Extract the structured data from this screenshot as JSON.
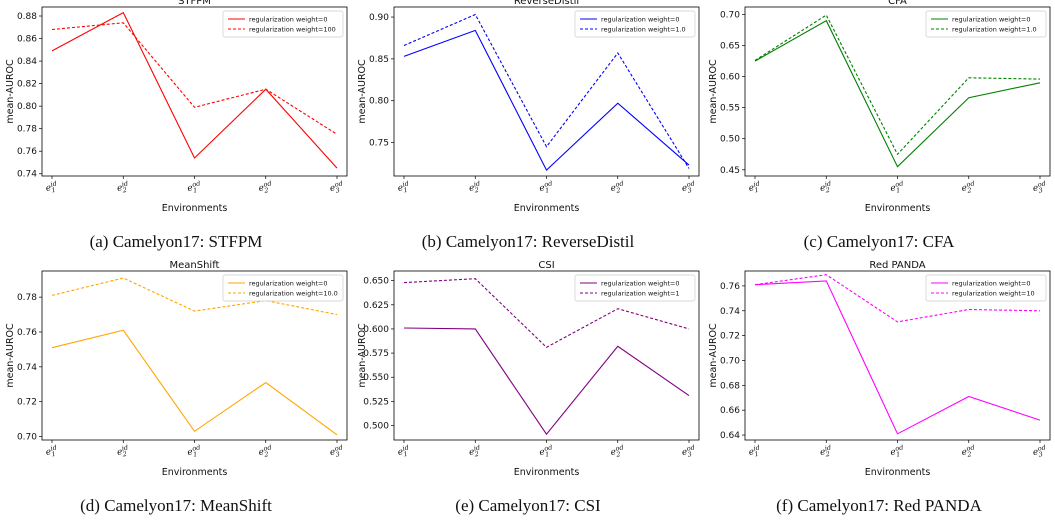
{
  "chart_data": [
    {
      "type": "line",
      "title": "STFPM",
      "caption": "(a) Camelyon17: STFPM",
      "xlabel": "Environments",
      "ylabel": "mean-AUROC",
      "categories": [
        [
          "e",
          "1",
          "id"
        ],
        [
          "e",
          "2",
          "id"
        ],
        [
          "e",
          "1",
          "od"
        ],
        [
          "e",
          "2",
          "od"
        ],
        [
          "e",
          "3",
          "od"
        ]
      ],
      "ylim": [
        0.738,
        0.888
      ],
      "yticks": [
        "0.74",
        "0.76",
        "0.78",
        "0.80",
        "0.82",
        "0.84",
        "0.86",
        "0.88"
      ],
      "yticks_v": [
        0.74,
        0.76,
        0.78,
        0.8,
        0.82,
        0.84,
        0.86,
        0.88
      ],
      "color": "#ff0000",
      "legend_pos": "top-right",
      "series": [
        {
          "name": "regularization weight=0",
          "style": "solid",
          "values": [
            0.849,
            0.883,
            0.754,
            0.815,
            0.745
          ]
        },
        {
          "name": "regularization weight=100",
          "style": "dashed",
          "values": [
            0.868,
            0.874,
            0.799,
            0.815,
            0.775
          ]
        }
      ]
    },
    {
      "type": "line",
      "title": "ReverseDistil",
      "caption": "(b) Camelyon17: ReverseDistil",
      "xlabel": "Environments",
      "ylabel": "mean-AUROC",
      "categories": [
        [
          "e",
          "1",
          "id"
        ],
        [
          "e",
          "2",
          "id"
        ],
        [
          "e",
          "1",
          "od"
        ],
        [
          "e",
          "2",
          "od"
        ],
        [
          "e",
          "3",
          "od"
        ]
      ],
      "ylim": [
        0.71,
        0.912
      ],
      "yticks": [
        "0.75",
        "0.80",
        "0.85",
        "0.90"
      ],
      "yticks_v": [
        0.75,
        0.8,
        0.85,
        0.9
      ],
      "color": "#0000ff",
      "legend_pos": "top-right",
      "series": [
        {
          "name": "regularization weight=0",
          "style": "solid",
          "values": [
            0.853,
            0.884,
            0.717,
            0.797,
            0.723
          ]
        },
        {
          "name": "regularization weight=1.0",
          "style": "dashed",
          "values": [
            0.866,
            0.903,
            0.745,
            0.857,
            0.719
          ]
        }
      ]
    },
    {
      "type": "line",
      "title": "CFA",
      "caption": "(c) Camelyon17: CFA",
      "xlabel": "Environments",
      "ylabel": "mean-AUROC",
      "categories": [
        [
          "e",
          "1",
          "id"
        ],
        [
          "e",
          "2",
          "id"
        ],
        [
          "e",
          "1",
          "od"
        ],
        [
          "e",
          "2",
          "od"
        ],
        [
          "e",
          "3",
          "od"
        ]
      ],
      "ylim": [
        0.44,
        0.712
      ],
      "yticks": [
        "0.45",
        "0.50",
        "0.55",
        "0.60",
        "0.65",
        "0.70"
      ],
      "yticks_v": [
        0.45,
        0.5,
        0.55,
        0.6,
        0.65,
        0.7
      ],
      "color": "#008000",
      "legend_pos": "top-right",
      "series": [
        {
          "name": "regularization weight=0",
          "style": "solid",
          "values": [
            0.625,
            0.69,
            0.455,
            0.566,
            0.59
          ]
        },
        {
          "name": "regularization weight=1.0",
          "style": "dashed",
          "values": [
            0.626,
            0.699,
            0.475,
            0.598,
            0.596
          ]
        }
      ]
    },
    {
      "type": "line",
      "title": "MeanShift",
      "caption": "(d) Camelyon17: MeanShift",
      "xlabel": "Environments",
      "ylabel": "mean-AUROC",
      "categories": [
        [
          "e",
          "1",
          "id"
        ],
        [
          "e",
          "2",
          "id"
        ],
        [
          "e",
          "1",
          "od"
        ],
        [
          "e",
          "2",
          "od"
        ],
        [
          "e",
          "3",
          "od"
        ]
      ],
      "ylim": [
        0.698,
        0.795
      ],
      "yticks": [
        "0.70",
        "0.72",
        "0.74",
        "0.76",
        "0.78"
      ],
      "yticks_v": [
        0.7,
        0.72,
        0.74,
        0.76,
        0.78
      ],
      "color": "#ffa500",
      "legend_pos": "top-right",
      "series": [
        {
          "name": "regularization weight=0",
          "style": "solid",
          "values": [
            0.751,
            0.761,
            0.703,
            0.731,
            0.701
          ]
        },
        {
          "name": "regularization weight=10.0",
          "style": "dashed",
          "values": [
            0.781,
            0.791,
            0.772,
            0.778,
            0.77
          ]
        }
      ]
    },
    {
      "type": "line",
      "title": "CSI",
      "caption": "(e) Camelyon17: CSI",
      "xlabel": "Environments",
      "ylabel": "mean-AUROC",
      "categories": [
        [
          "e",
          "1",
          "id"
        ],
        [
          "e",
          "2",
          "id"
        ],
        [
          "e",
          "1",
          "od"
        ],
        [
          "e",
          "2",
          "od"
        ],
        [
          "e",
          "3",
          "od"
        ]
      ],
      "ylim": [
        0.485,
        0.66
      ],
      "yticks": [
        "0.500",
        "0.525",
        "0.550",
        "0.575",
        "0.600",
        "0.625",
        "0.650"
      ],
      "yticks_v": [
        0.5,
        0.525,
        0.55,
        0.575,
        0.6,
        0.625,
        0.65
      ],
      "color": "#800080",
      "legend_pos": "top-right",
      "series": [
        {
          "name": "regularization weight=0",
          "style": "solid",
          "values": [
            0.601,
            0.6,
            0.491,
            0.582,
            0.531
          ]
        },
        {
          "name": "regularization weight=1",
          "style": "dashed",
          "values": [
            0.648,
            0.652,
            0.581,
            0.621,
            0.6
          ]
        }
      ]
    },
    {
      "type": "line",
      "title": "Red PANDA",
      "caption": "(f) Camelyon17: Red PANDA",
      "xlabel": "Environments",
      "ylabel": "mean-AUROC",
      "categories": [
        [
          "e",
          "1",
          "id"
        ],
        [
          "e",
          "2",
          "id"
        ],
        [
          "e",
          "1",
          "od"
        ],
        [
          "e",
          "2",
          "od"
        ],
        [
          "e",
          "3",
          "od"
        ]
      ],
      "ylim": [
        0.636,
        0.772
      ],
      "yticks": [
        "0.64",
        "0.66",
        "0.68",
        "0.70",
        "0.72",
        "0.74",
        "0.76"
      ],
      "yticks_v": [
        0.64,
        0.66,
        0.68,
        0.7,
        0.72,
        0.74,
        0.76
      ],
      "color": "#ff00ff",
      "legend_pos": "top-right",
      "series": [
        {
          "name": "regularization weight=0",
          "style": "solid",
          "values": [
            0.761,
            0.764,
            0.641,
            0.671,
            0.652
          ]
        },
        {
          "name": "regularization weight=10",
          "style": "dashed",
          "values": [
            0.761,
            0.769,
            0.731,
            0.741,
            0.74
          ]
        }
      ]
    }
  ]
}
